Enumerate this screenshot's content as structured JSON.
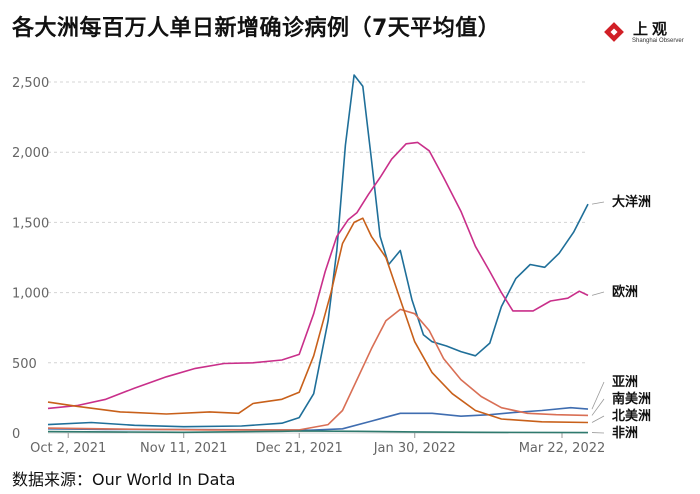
{
  "header": {
    "title": "各大洲每百万人单日新增确诊病例（7天平均值）",
    "logo_text": "上观",
    "logo_subtext": "Shanghai Observer"
  },
  "source": "数据来源：Our World In Data",
  "chart_data": {
    "type": "line",
    "title": "各大洲每百万人单日新增确诊病例（7天平均值）",
    "xlabel": "",
    "ylabel": "",
    "x_ticks": [
      "Oct 2, 2021",
      "Nov 11, 2021",
      "Dec 21, 2021",
      "Jan 30, 2022",
      "Mar 22, 2022"
    ],
    "y_ticks": [
      0,
      500,
      1000,
      1500,
      2000,
      2500
    ],
    "ylim": [
      0,
      2500
    ],
    "x_range": [
      "2021-09-25",
      "2022-03-31"
    ],
    "grid": true,
    "legend": "labels at line ends (right)",
    "series": [
      {
        "name": "大洋洲",
        "color": "#1f6f99",
        "points": [
          [
            "2021-09-25",
            60
          ],
          [
            "2021-10-10",
            75
          ],
          [
            "2021-10-25",
            55
          ],
          [
            "2021-11-11",
            45
          ],
          [
            "2021-12-01",
            50
          ],
          [
            "2021-12-15",
            70
          ],
          [
            "2021-12-21",
            110
          ],
          [
            "2021-12-26",
            280
          ],
          [
            "2021-12-31",
            800
          ],
          [
            "2022-01-03",
            1300
          ],
          [
            "2022-01-06",
            2050
          ],
          [
            "2022-01-09",
            2550
          ],
          [
            "2022-01-12",
            2470
          ],
          [
            "2022-01-15",
            1950
          ],
          [
            "2022-01-18",
            1400
          ],
          [
            "2022-01-21",
            1200
          ],
          [
            "2022-01-25",
            1300
          ],
          [
            "2022-01-29",
            950
          ],
          [
            "2022-02-02",
            700
          ],
          [
            "2022-02-05",
            650
          ],
          [
            "2022-02-10",
            620
          ],
          [
            "2022-02-15",
            580
          ],
          [
            "2022-02-20",
            550
          ],
          [
            "2022-02-25",
            640
          ],
          [
            "2022-03-01",
            900
          ],
          [
            "2022-03-06",
            1100
          ],
          [
            "2022-03-11",
            1200
          ],
          [
            "2022-03-16",
            1180
          ],
          [
            "2022-03-21",
            1280
          ],
          [
            "2022-03-26",
            1430
          ],
          [
            "2022-03-31",
            1630
          ]
        ]
      },
      {
        "name": "欧洲",
        "color": "#c92f8a",
        "points": [
          [
            "2021-09-25",
            175
          ],
          [
            "2021-10-05",
            195
          ],
          [
            "2021-10-15",
            240
          ],
          [
            "2021-10-25",
            320
          ],
          [
            "2021-11-05",
            400
          ],
          [
            "2021-11-15",
            460
          ],
          [
            "2021-11-25",
            495
          ],
          [
            "2021-12-05",
            500
          ],
          [
            "2021-12-15",
            520
          ],
          [
            "2021-12-21",
            560
          ],
          [
            "2021-12-26",
            850
          ],
          [
            "2021-12-30",
            1150
          ],
          [
            "2022-01-03",
            1400
          ],
          [
            "2022-01-07",
            1520
          ],
          [
            "2022-01-10",
            1570
          ],
          [
            "2022-01-14",
            1700
          ],
          [
            "2022-01-18",
            1820
          ],
          [
            "2022-01-22",
            1950
          ],
          [
            "2022-01-27",
            2060
          ],
          [
            "2022-01-31",
            2070
          ],
          [
            "2022-02-04",
            2010
          ],
          [
            "2022-02-09",
            1820
          ],
          [
            "2022-02-15",
            1580
          ],
          [
            "2022-02-20",
            1330
          ],
          [
            "2022-02-25",
            1150
          ],
          [
            "2022-03-01",
            1000
          ],
          [
            "2022-03-05",
            870
          ],
          [
            "2022-03-12",
            870
          ],
          [
            "2022-03-18",
            940
          ],
          [
            "2022-03-24",
            960
          ],
          [
            "2022-03-28",
            1010
          ],
          [
            "2022-03-31",
            980
          ]
        ]
      },
      {
        "name": "亚洲",
        "color": "#3f6db0",
        "points": [
          [
            "2021-09-25",
            30
          ],
          [
            "2021-10-15",
            25
          ],
          [
            "2021-11-11",
            25
          ],
          [
            "2021-12-10",
            22
          ],
          [
            "2021-12-25",
            20
          ],
          [
            "2022-01-05",
            30
          ],
          [
            "2022-01-15",
            85
          ],
          [
            "2022-01-25",
            140
          ],
          [
            "2022-02-05",
            140
          ],
          [
            "2022-02-15",
            120
          ],
          [
            "2022-02-25",
            130
          ],
          [
            "2022-03-05",
            145
          ],
          [
            "2022-03-15",
            160
          ],
          [
            "2022-03-25",
            180
          ],
          [
            "2022-03-31",
            170
          ]
        ]
      },
      {
        "name": "南美洲",
        "color": "#d96f55",
        "points": [
          [
            "2021-09-25",
            35
          ],
          [
            "2021-10-20",
            28
          ],
          [
            "2021-11-20",
            22
          ],
          [
            "2021-12-21",
            22
          ],
          [
            "2021-12-31",
            60
          ],
          [
            "2022-01-05",
            160
          ],
          [
            "2022-01-10",
            380
          ],
          [
            "2022-01-15",
            600
          ],
          [
            "2022-01-20",
            800
          ],
          [
            "2022-01-25",
            880
          ],
          [
            "2022-01-30",
            850
          ],
          [
            "2022-02-04",
            730
          ],
          [
            "2022-02-09",
            530
          ],
          [
            "2022-02-15",
            380
          ],
          [
            "2022-02-22",
            260
          ],
          [
            "2022-03-01",
            180
          ],
          [
            "2022-03-10",
            140
          ],
          [
            "2022-03-20",
            130
          ],
          [
            "2022-03-31",
            125
          ]
        ]
      },
      {
        "name": "北美洲",
        "color": "#c8601a",
        "points": [
          [
            "2021-09-25",
            220
          ],
          [
            "2021-10-05",
            190
          ],
          [
            "2021-10-20",
            150
          ],
          [
            "2021-11-05",
            135
          ],
          [
            "2021-11-20",
            150
          ],
          [
            "2021-11-30",
            140
          ],
          [
            "2021-12-05",
            210
          ],
          [
            "2021-12-15",
            240
          ],
          [
            "2021-12-21",
            290
          ],
          [
            "2021-12-26",
            550
          ],
          [
            "2022-01-01",
            1000
          ],
          [
            "2022-01-05",
            1350
          ],
          [
            "2022-01-09",
            1500
          ],
          [
            "2022-01-12",
            1530
          ],
          [
            "2022-01-15",
            1400
          ],
          [
            "2022-01-20",
            1250
          ],
          [
            "2022-01-25",
            950
          ],
          [
            "2022-01-30",
            650
          ],
          [
            "2022-02-05",
            430
          ],
          [
            "2022-02-12",
            280
          ],
          [
            "2022-02-20",
            160
          ],
          [
            "2022-03-01",
            100
          ],
          [
            "2022-03-15",
            80
          ],
          [
            "2022-03-31",
            75
          ]
        ]
      },
      {
        "name": "非洲",
        "color": "#2f7a6e",
        "points": [
          [
            "2021-09-25",
            10
          ],
          [
            "2021-11-11",
            5
          ],
          [
            "2021-12-15",
            12
          ],
          [
            "2021-12-21",
            14
          ],
          [
            "2022-01-10",
            12
          ],
          [
            "2022-01-30",
            8
          ],
          [
            "2022-02-20",
            5
          ],
          [
            "2022-03-31",
            3
          ]
        ]
      }
    ]
  }
}
